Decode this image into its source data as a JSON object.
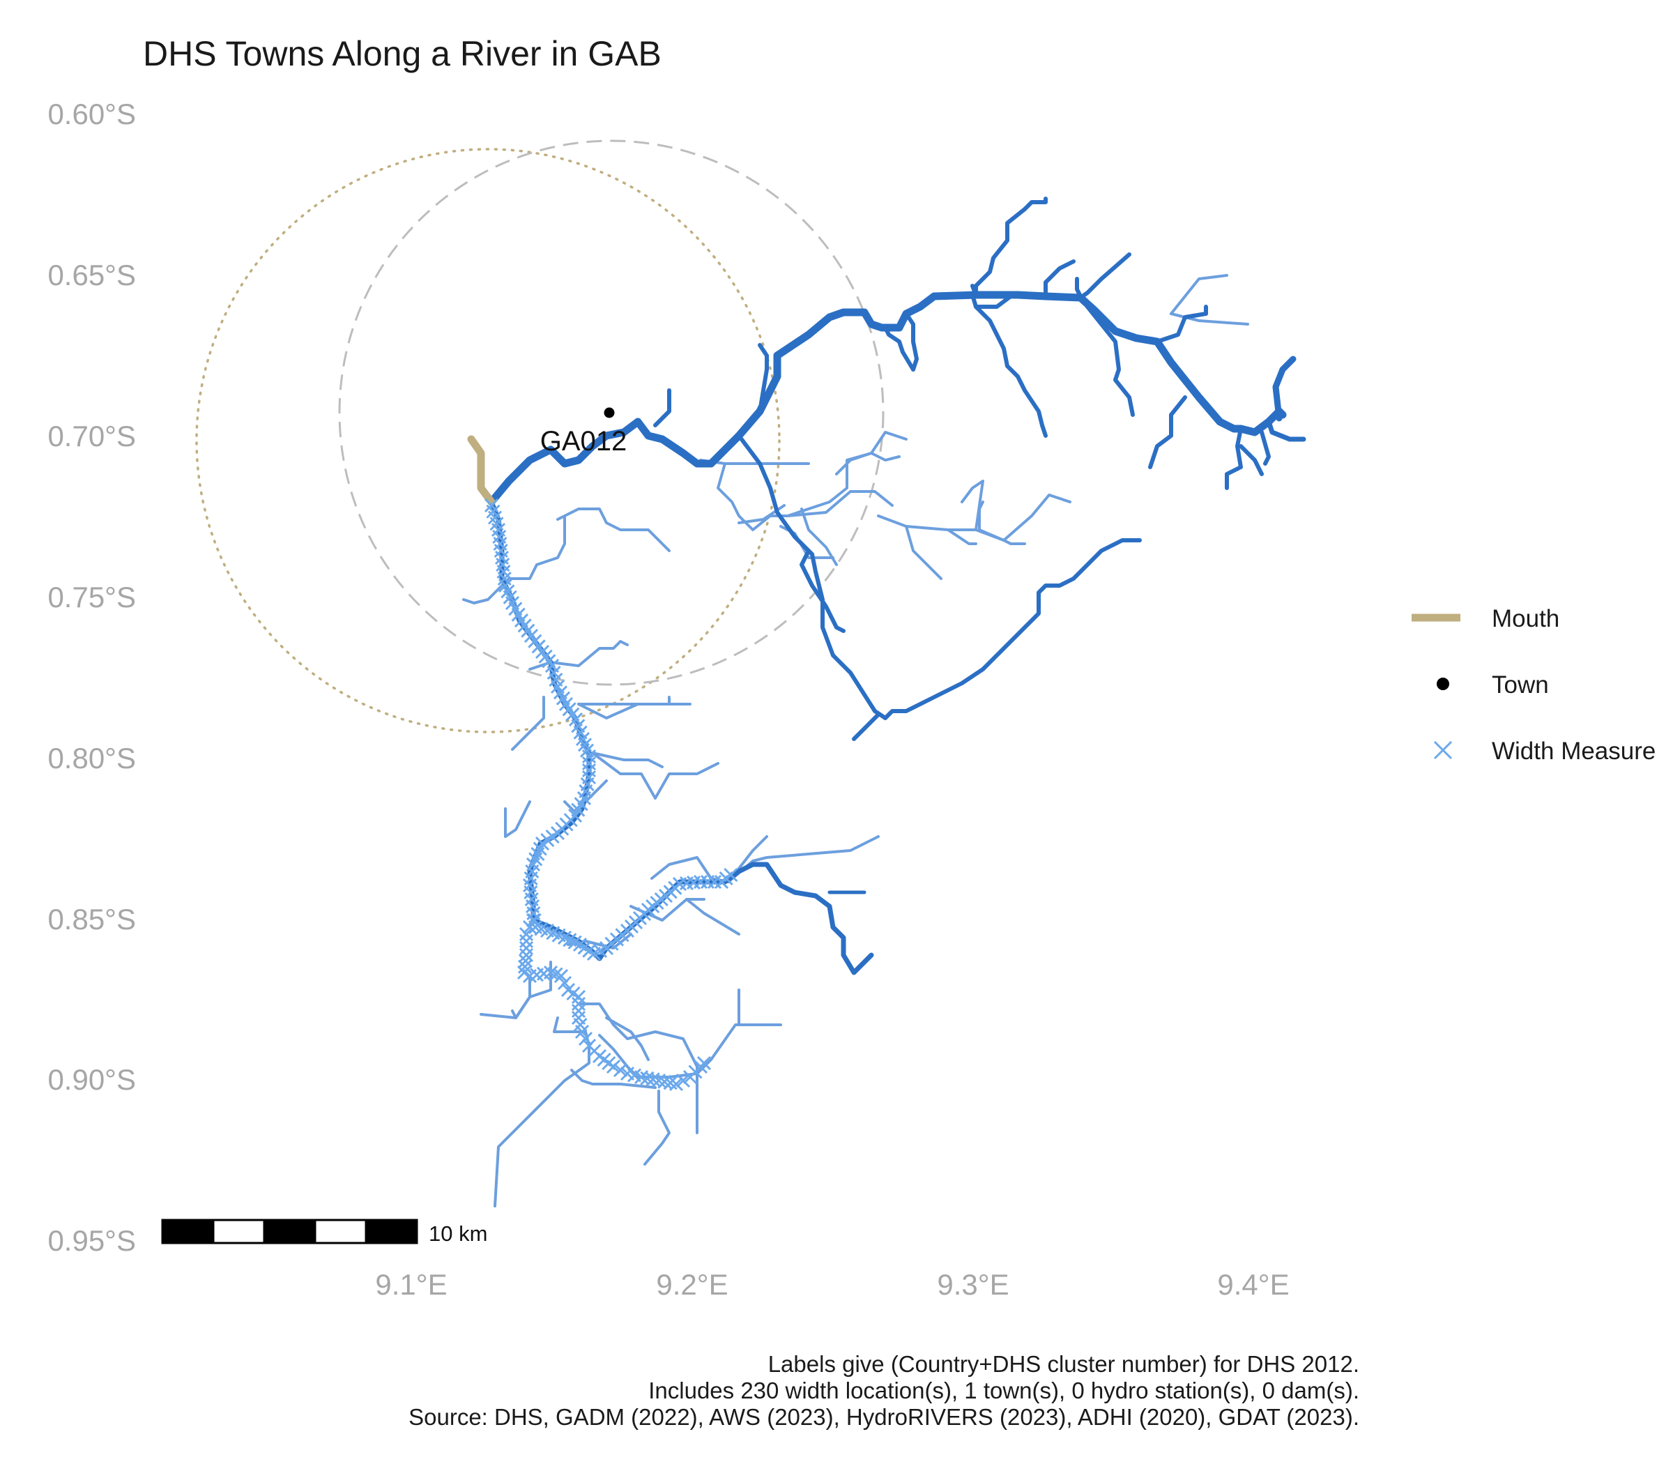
{
  "title": "DHS Towns Along a River in GAB",
  "axes": {
    "y_ticks": [
      "0.60°S",
      "0.65°S",
      "0.70°S",
      "0.75°S",
      "0.80°S",
      "0.85°S",
      "0.90°S",
      "0.95°S"
    ],
    "x_ticks": [
      "9.1°E",
      "9.2°E",
      "9.3°E",
      "9.4°E"
    ]
  },
  "legend": {
    "items": [
      {
        "label": "Mouth",
        "color": "#bfae7f",
        "symbol": "line"
      },
      {
        "label": "Town",
        "color": "#000000",
        "symbol": "point"
      },
      {
        "label": "Width Measure",
        "color": "#6aa8ec",
        "symbol": "cross"
      }
    ]
  },
  "town": {
    "label": "GA012"
  },
  "scale_bar": {
    "label": "10 km"
  },
  "caption": {
    "lines": [
      "Labels give (Country+DHS cluster number) for DHS 2012.",
      "Includes 230 width location(s), 1 town(s), 0 hydro station(s), 0 dam(s).",
      "Source: DHS, GADM (2022), AWS (2023), HydroRIVERS (2023), ADHI (2020), GDAT (2023)."
    ]
  },
  "colors": {
    "river_main": "#2b6fc4",
    "river_tributary": "#6c9fde",
    "mouth": "#bfae7f",
    "width_measure": "#6aa8ec",
    "town": "#000000",
    "buffer_dashed": "#bdbdbd",
    "buffer_dotted": "#bfae7f",
    "axis_text": "#a6a6a6"
  }
}
